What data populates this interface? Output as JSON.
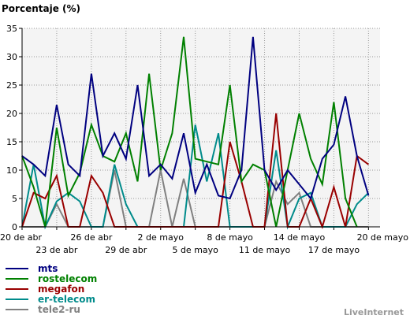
{
  "chart_data": {
    "type": "line",
    "title": "Porcentaje (%)",
    "brand": "LiveInternet",
    "ylim": [
      0,
      35
    ],
    "yticks": [
      "0",
      "5",
      "10",
      "15",
      "20",
      "25",
      "30",
      "35"
    ],
    "xticks_top": [
      "20 de abr",
      "26 de abr",
      "2 de mayo",
      "8 de mayo",
      "14 de mayo",
      "20 de mayo"
    ],
    "xticks_bottom": [
      "23 de abr",
      "29 de abr",
      "5 de mayo",
      "11 de mayo",
      "17 de mayo"
    ],
    "x": [
      "20 de abr",
      "21 de abr",
      "22 de abr",
      "23 de abr",
      "24 de abr",
      "25 de abr",
      "26 de abr",
      "27 de abr",
      "28 de abr",
      "29 de abr",
      "30 de abr",
      "1 de mayo",
      "2 de mayo",
      "3 de mayo",
      "4 de mayo",
      "5 de mayo",
      "6 de mayo",
      "7 de mayo",
      "8 de mayo",
      "9 de mayo",
      "10 de mayo",
      "11 de mayo",
      "12 de mayo",
      "13 de mayo",
      "14 de mayo",
      "15 de mayo",
      "16 de mayo",
      "17 de mayo",
      "18 de mayo",
      "19 de mayo",
      "20 de mayo",
      "21 de mayo"
    ],
    "grid": true,
    "legend_position": "bottom-left",
    "series": [
      {
        "name": "mts",
        "color": "#000080",
        "values": [
          12.5,
          11,
          9,
          21.5,
          11,
          9,
          27,
          12.5,
          16.5,
          12,
          25,
          9,
          11,
          8.5,
          16.5,
          6,
          11,
          5.5,
          5,
          10,
          33.5,
          10,
          6.5,
          10,
          7.5,
          5,
          12,
          14.5,
          23,
          12.5,
          5.5,
          null
        ]
      },
      {
        "name": "rostelecom",
        "color": "#008000",
        "values": [
          12.5,
          7,
          0,
          17.5,
          5.5,
          9.5,
          18,
          12.5,
          11.5,
          16.5,
          8,
          27,
          10,
          16.5,
          33.5,
          12,
          11.5,
          11,
          25,
          8,
          11,
          10,
          0,
          10,
          20,
          12,
          7.5,
          22,
          5,
          0,
          null,
          null
        ]
      },
      {
        "name": "megafon",
        "color": "#990000",
        "values": [
          0,
          6,
          5,
          9,
          0,
          0,
          9,
          6,
          0,
          0,
          0,
          0,
          0,
          0,
          0,
          0,
          0,
          0,
          15,
          8,
          0,
          0,
          20,
          0,
          0,
          5,
          0,
          7,
          0,
          12.5,
          11,
          null
        ]
      },
      {
        "name": "er-telecom",
        "color": "#008B8B",
        "values": [
          0,
          11,
          0,
          4.5,
          6,
          4.5,
          0,
          0,
          11,
          4,
          0,
          0,
          0,
          0,
          0,
          18,
          8,
          16.5,
          0,
          0,
          0,
          0,
          13.5,
          0,
          5,
          6,
          0,
          0,
          0,
          4,
          6,
          null
        ]
      },
      {
        "name": "tele2-ru",
        "color": "#808080",
        "values": [
          0,
          0,
          0,
          4,
          0,
          0,
          0,
          0,
          10,
          0,
          0,
          0,
          10,
          0,
          8.5,
          0,
          0,
          0,
          0,
          0,
          0,
          0,
          8,
          4,
          6,
          0,
          0,
          0,
          0,
          0,
          0,
          null
        ]
      }
    ]
  }
}
